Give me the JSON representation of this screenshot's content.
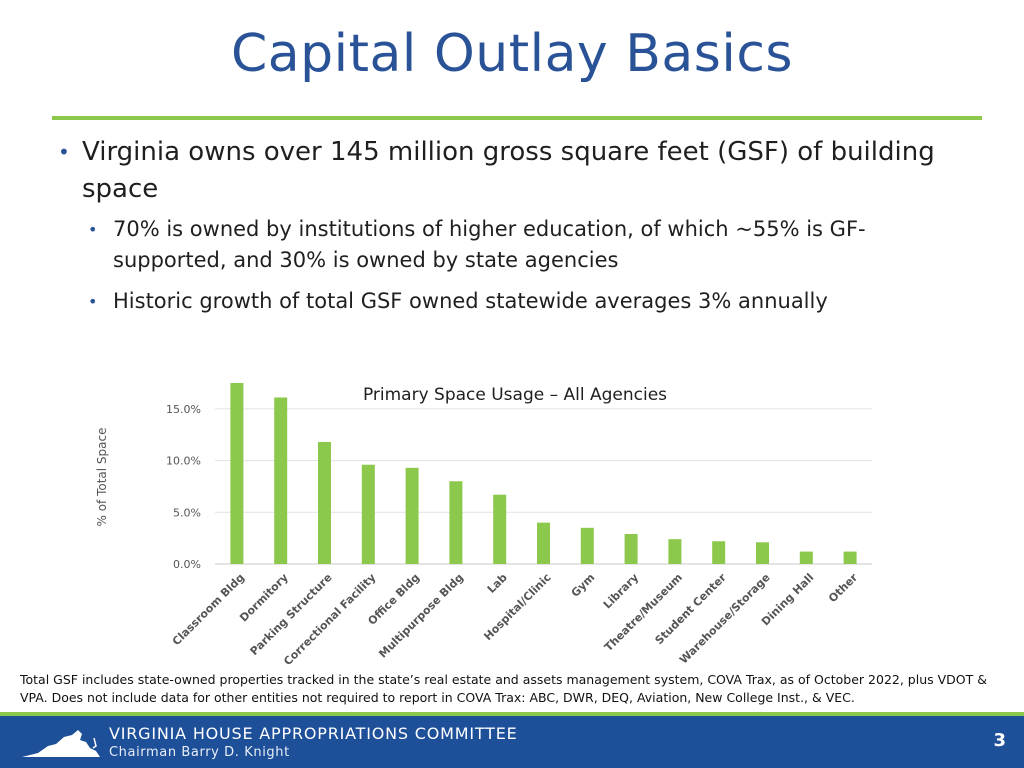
{
  "slide": {
    "title": "Capital Outlay Basics",
    "bullet1": "Virginia owns over 145 million gross square feet (GSF) of building space",
    "sub1": "70% is owned by institutions of higher education, of which ~55% is GF-supported, and 30% is owned by state agencies",
    "sub2": "Historic growth of total GSF owned statewide averages 3% annually",
    "footnote": "Total GSF includes state-owned properties tracked in the state’s real estate and assets management system, COVA Trax, as of October 2022, plus VDOT & VPA.  Does not include data for other entities not required to report in COVA Trax: ABC, DWR, DEQ, Aviation, New College Inst., & VEC.",
    "page_number": "3"
  },
  "footer": {
    "org": "VIRGINIA HOUSE APPROPRIATIONS COMMITTEE",
    "chair": "Chairman Barry D. Knight",
    "logo_icon": "virginia-state-outline-icon"
  },
  "colors": {
    "title": "#2a5297",
    "accent_green": "#8cc84b",
    "bar": "#8cc84b",
    "footer_blue": "#1e4f99"
  },
  "chart_data": {
    "type": "bar",
    "title": "Primary Space Usage – All Agencies",
    "ylabel": "% of Total Space",
    "xlabel": "",
    "ylim": [
      0,
      17.5
    ],
    "yticks": [
      0,
      5,
      10,
      15
    ],
    "ytick_labels": [
      "0.0%",
      "5.0%",
      "10.0%",
      "15.0%"
    ],
    "grid": true,
    "categories": [
      "Classroom Bldg",
      "Dormitory",
      "Parking Structure",
      "Correctional Facility",
      "Office Bldg",
      "Multipurpose Bldg",
      "Lab",
      "Hospital/Clinic",
      "Gym",
      "Library",
      "Theatre/Museum",
      "Student Center",
      "Warehouse/Storage",
      "Dining Hall",
      "Other"
    ],
    "values": [
      17.5,
      16.1,
      11.8,
      9.6,
      9.3,
      8.0,
      6.7,
      4.0,
      3.5,
      2.9,
      2.4,
      2.2,
      2.1,
      1.2,
      1.2
    ]
  }
}
